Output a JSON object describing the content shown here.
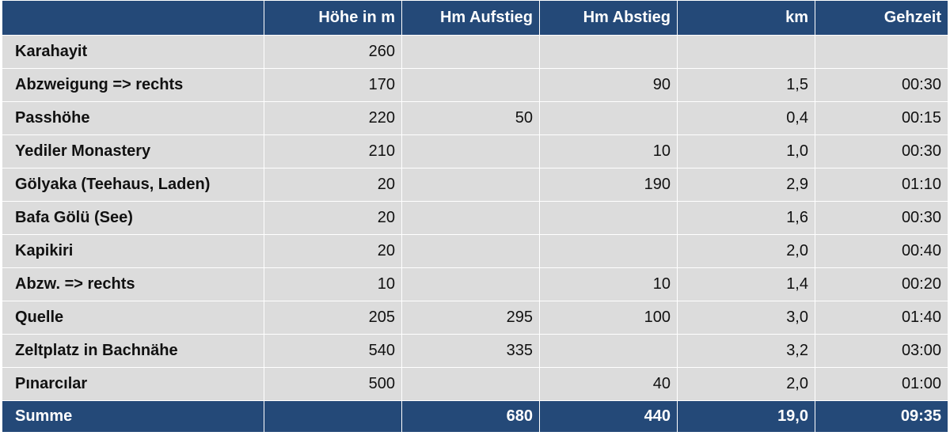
{
  "columns": [
    "",
    "Höhe in m",
    "Hm Aufstieg",
    "Hm Abstieg",
    "km",
    "Gehzeit"
  ],
  "rows": [
    {
      "name": "Karahayit",
      "hoehe": "260",
      "aufstieg": "",
      "abstieg": "",
      "km": "",
      "gehzeit": ""
    },
    {
      "name": "Abzweigung => rechts",
      "hoehe": "170",
      "aufstieg": "",
      "abstieg": "90",
      "km": "1,5",
      "gehzeit": "00:30"
    },
    {
      "name": "Passhöhe",
      "hoehe": "220",
      "aufstieg": "50",
      "abstieg": "",
      "km": "0,4",
      "gehzeit": "00:15"
    },
    {
      "name": "Yediler Monastery",
      "hoehe": "210",
      "aufstieg": "",
      "abstieg": "10",
      "km": "1,0",
      "gehzeit": "00:30"
    },
    {
      "name": "Gölyaka (Teehaus, Laden)",
      "hoehe": "20",
      "aufstieg": "",
      "abstieg": "190",
      "km": "2,9",
      "gehzeit": "01:10"
    },
    {
      "name": "Bafa Gölü (See)",
      "hoehe": "20",
      "aufstieg": "",
      "abstieg": "",
      "km": "1,6",
      "gehzeit": "00:30"
    },
    {
      "name": "Kapikiri",
      "hoehe": "20",
      "aufstieg": "",
      "abstieg": "",
      "km": "2,0",
      "gehzeit": "00:40"
    },
    {
      "name": "Abzw. => rechts",
      "hoehe": "10",
      "aufstieg": "",
      "abstieg": "10",
      "km": "1,4",
      "gehzeit": "00:20"
    },
    {
      "name": "Quelle",
      "hoehe": "205",
      "aufstieg": "295",
      "abstieg": "100",
      "km": "3,0",
      "gehzeit": "01:40"
    },
    {
      "name": "Zeltplatz in Bachnähe",
      "hoehe": "540",
      "aufstieg": "335",
      "abstieg": "",
      "km": "3,2",
      "gehzeit": "03:00"
    },
    {
      "name": "Pınarcılar",
      "hoehe": "500",
      "aufstieg": "",
      "abstieg": "40",
      "km": "2,0",
      "gehzeit": "01:00"
    }
  ],
  "summary": {
    "name": "Summe",
    "hoehe": "",
    "aufstieg": "680",
    "abstieg": "440",
    "km": "19,0",
    "gehzeit": "09:35"
  },
  "colors": {
    "header_bg": "#244978",
    "row_bg": "#dcdcdc",
    "border": "#ffffff"
  }
}
